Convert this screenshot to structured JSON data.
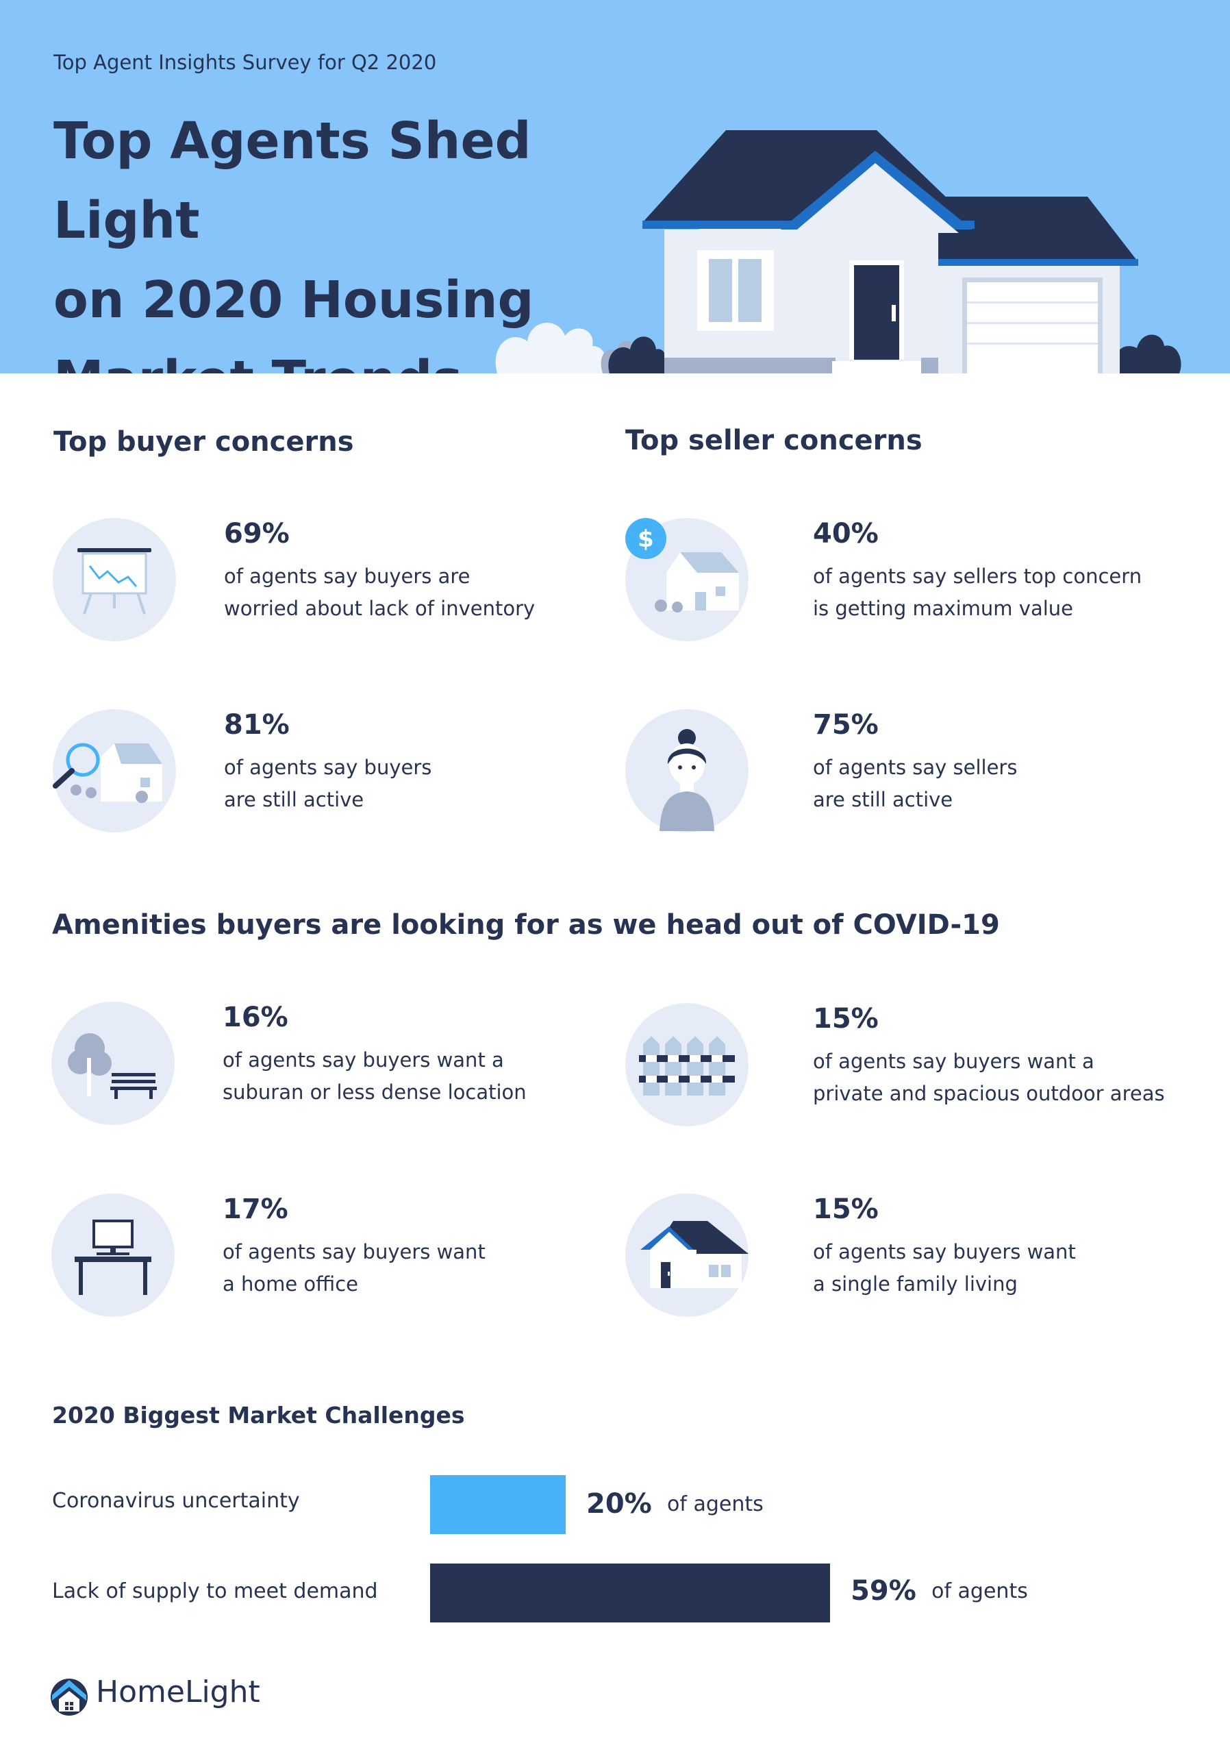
{
  "header": {
    "eyebrow": "Top Agent Insights Survey for Q2 2020",
    "title_lines": [
      "Top Agents Shed Light",
      "on 2020 Housing",
      "Market Trends"
    ]
  },
  "buyer_concerns": {
    "title": "Top buyer concerns",
    "items": [
      {
        "pct": "69%",
        "line1": "of agents say buyers are",
        "line2": "worried about lack of inventory",
        "icon": "chart-easel-icon"
      },
      {
        "pct": "81%",
        "line1": "of agents say buyers",
        "line2": "are still active",
        "icon": "magnifier-house-icon"
      }
    ]
  },
  "seller_concerns": {
    "title": "Top seller concerns",
    "items": [
      {
        "pct": "40%",
        "line1": "of agents say sellers top concern",
        "line2": "is getting maximum value",
        "icon": "dollar-house-icon"
      },
      {
        "pct": "75%",
        "line1": "of agents say sellers",
        "line2": "are still active",
        "icon": "person-icon"
      }
    ]
  },
  "amenities": {
    "title": "Amenities buyers are looking for as we head out of COVID-19",
    "items": [
      {
        "pct": "16%",
        "line1": "of agents say buyers want a",
        "line2": "suburan or less dense location",
        "icon": "tree-bench-icon"
      },
      {
        "pct": "15%",
        "line1": "of agents say buyers want a",
        "line2": "private and spacious outdoor areas",
        "icon": "fence-icon"
      },
      {
        "pct": "17%",
        "line1": "of agents say buyers want",
        "line2": "a home office",
        "icon": "desk-computer-icon"
      },
      {
        "pct": "15%",
        "line1": "of agents say buyers want",
        "line2": "a single family living",
        "icon": "single-family-house-icon"
      }
    ]
  },
  "chart_data": {
    "type": "bar",
    "title": "2020 Biggest Market Challenges",
    "categories": [
      "Coronavirus uncertainty",
      "Lack of supply to meet demand"
    ],
    "values": [
      20,
      59
    ],
    "value_labels": [
      "20%",
      "59%"
    ],
    "unit_label": "of agents",
    "colors": [
      "#45b2f7",
      "#263352"
    ],
    "orientation": "horizontal"
  },
  "logo": {
    "text": "HomeLight"
  },
  "colors": {
    "sky": "#86c4fa",
    "navy": "#263352",
    "accent_blue": "#45b2f7",
    "icon_bg": "#e6ecf7"
  }
}
